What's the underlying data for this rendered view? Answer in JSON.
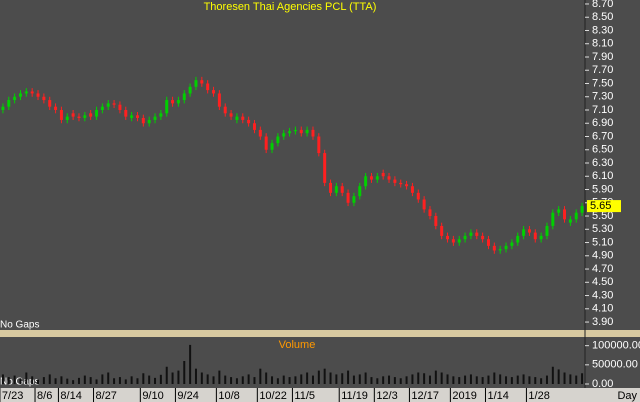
{
  "chart_data": {
    "type": "candlestick",
    "title": "Thoresen Thai Agencies PCL (TTA)",
    "up_color": "#00d000",
    "down_color": "#ff2020",
    "volume_color": "#111111",
    "open": [
      7.1,
      7.15,
      7.25,
      7.3,
      7.35,
      7.38,
      7.35,
      7.3,
      7.25,
      7.15,
      7.1,
      6.95,
      7.05,
      7.0,
      6.98,
      7.05,
      7.0,
      7.1,
      7.15,
      7.2,
      7.18,
      7.1,
      6.98,
      7.02,
      6.98,
      6.9,
      6.95,
      7.0,
      7.05,
      7.25,
      7.2,
      7.25,
      7.35,
      7.45,
      7.55,
      7.5,
      7.4,
      7.35,
      7.15,
      7.05,
      6.95,
      7.0,
      6.95,
      6.9,
      6.8,
      6.7,
      6.5,
      6.6,
      6.7,
      6.75,
      6.78,
      6.8,
      6.75,
      6.8,
      6.7,
      6.45,
      6.0,
      5.85,
      5.95,
      5.85,
      5.7,
      5.8,
      5.95,
      6.1,
      6.05,
      6.15,
      6.1,
      6.05,
      6.0,
      5.98,
      5.95,
      5.85,
      5.75,
      5.6,
      5.5,
      5.35,
      5.2,
      5.15,
      5.1,
      5.15,
      5.2,
      5.25,
      5.2,
      5.15,
      5.05,
      4.98,
      5.0,
      5.05,
      5.1,
      5.2,
      5.3,
      5.25,
      5.15,
      5.2,
      5.35,
      5.55,
      5.6,
      5.4,
      5.45,
      5.55
    ],
    "high": [
      7.2,
      7.3,
      7.35,
      7.4,
      7.43,
      7.43,
      7.4,
      7.35,
      7.3,
      7.2,
      7.15,
      7.05,
      7.1,
      7.05,
      7.07,
      7.1,
      7.15,
      7.2,
      7.25,
      7.25,
      7.23,
      7.15,
      7.07,
      7.07,
      7.03,
      7.0,
      7.05,
      7.1,
      7.3,
      7.3,
      7.3,
      7.4,
      7.5,
      7.6,
      7.6,
      7.55,
      7.45,
      7.4,
      7.2,
      7.1,
      7.05,
      7.05,
      7.0,
      6.95,
      6.85,
      6.75,
      6.65,
      6.75,
      6.8,
      6.83,
      6.85,
      6.85,
      6.85,
      6.85,
      6.75,
      6.5,
      6.05,
      6.0,
      6.0,
      5.9,
      5.85,
      6.0,
      6.15,
      6.15,
      6.15,
      6.2,
      6.15,
      6.1,
      6.05,
      6.03,
      6.0,
      5.9,
      5.8,
      5.65,
      5.55,
      5.4,
      5.25,
      5.2,
      5.2,
      5.25,
      5.3,
      5.3,
      5.25,
      5.2,
      5.1,
      5.05,
      5.1,
      5.15,
      5.25,
      5.35,
      5.35,
      5.3,
      5.25,
      5.4,
      5.6,
      5.65,
      5.65,
      5.5,
      5.6,
      5.7
    ],
    "low": [
      7.05,
      7.1,
      7.2,
      7.25,
      7.3,
      7.3,
      7.25,
      7.2,
      7.1,
      7.05,
      6.9,
      6.9,
      6.95,
      6.93,
      6.93,
      6.95,
      6.95,
      7.05,
      7.1,
      7.13,
      7.05,
      6.95,
      6.93,
      6.93,
      6.85,
      6.85,
      6.9,
      6.95,
      7.0,
      7.15,
      7.15,
      7.2,
      7.3,
      7.4,
      7.45,
      7.35,
      7.3,
      7.1,
      7.0,
      6.95,
      6.9,
      6.9,
      6.85,
      6.75,
      6.65,
      6.45,
      6.45,
      6.55,
      6.65,
      6.7,
      6.73,
      6.7,
      6.7,
      6.65,
      6.4,
      5.95,
      5.8,
      5.8,
      5.8,
      5.65,
      5.65,
      5.75,
      5.9,
      6.0,
      6.0,
      6.05,
      6.0,
      5.95,
      5.93,
      5.9,
      5.8,
      5.7,
      5.55,
      5.45,
      5.3,
      5.15,
      5.1,
      5.05,
      5.05,
      5.1,
      5.15,
      5.15,
      5.1,
      5.0,
      4.93,
      4.93,
      4.95,
      5.0,
      5.05,
      5.15,
      5.2,
      5.1,
      5.1,
      5.15,
      5.3,
      5.5,
      5.4,
      5.35,
      5.4,
      5.5
    ],
    "close": [
      7.15,
      7.25,
      7.3,
      7.35,
      7.38,
      7.35,
      7.3,
      7.25,
      7.15,
      7.1,
      6.95,
      7.0,
      7.0,
      6.98,
      7.02,
      7.0,
      7.1,
      7.15,
      7.2,
      7.18,
      7.1,
      7.0,
      7.02,
      6.98,
      6.9,
      6.95,
      7.0,
      7.05,
      7.25,
      7.2,
      7.25,
      7.35,
      7.45,
      7.55,
      7.5,
      7.4,
      7.35,
      7.15,
      7.05,
      7.0,
      7.0,
      6.95,
      6.9,
      6.8,
      6.7,
      6.5,
      6.6,
      6.7,
      6.75,
      6.78,
      6.8,
      6.75,
      6.8,
      6.7,
      6.45,
      6.0,
      5.85,
      5.95,
      5.85,
      5.7,
      5.8,
      5.95,
      6.1,
      6.05,
      6.1,
      6.1,
      6.05,
      6.0,
      5.98,
      5.95,
      5.85,
      5.75,
      5.6,
      5.5,
      5.35,
      5.2,
      5.15,
      5.1,
      5.15,
      5.2,
      5.25,
      5.2,
      5.15,
      5.05,
      4.98,
      5.0,
      5.05,
      5.1,
      5.2,
      5.3,
      5.25,
      5.15,
      5.2,
      5.35,
      5.55,
      5.6,
      5.45,
      5.45,
      5.55,
      5.65
    ],
    "xlim": [
      0,
      100
    ],
    "xticks": [
      {
        "value": 0,
        "label": "7/23"
      },
      {
        "value": 6,
        "label": "8/6"
      },
      {
        "value": 10,
        "label": "8/14"
      },
      {
        "value": 16,
        "label": "8/27"
      },
      {
        "value": 24,
        "label": "9/10"
      },
      {
        "value": 30,
        "label": "9/24"
      },
      {
        "value": 37,
        "label": "10/8"
      },
      {
        "value": 44,
        "label": "10/22"
      },
      {
        "value": 50,
        "label": "11/5"
      },
      {
        "value": 58,
        "label": "11/19"
      },
      {
        "value": 64,
        "label": "12/3"
      },
      {
        "value": 70,
        "label": "12/17"
      },
      {
        "value": 77,
        "label": "2019"
      },
      {
        "value": 83,
        "label": "1/14"
      },
      {
        "value": 90,
        "label": "1/28"
      }
    ],
    "x_unit": "Day",
    "ylim": [
      3.78,
      8.76
    ],
    "yticks": [
      {
        "value": 3.9,
        "label": "3.90"
      },
      {
        "value": 4.1,
        "label": "4.10"
      },
      {
        "value": 4.3,
        "label": "4.30"
      },
      {
        "value": 4.5,
        "label": "4.50"
      },
      {
        "value": 4.7,
        "label": "4.70"
      },
      {
        "value": 4.9,
        "label": "4.90"
      },
      {
        "value": 5.1,
        "label": "5.10"
      },
      {
        "value": 5.3,
        "label": "5.30"
      },
      {
        "value": 5.5,
        "label": "5.50"
      },
      {
        "value": 5.7,
        "label": "5.70"
      },
      {
        "value": 5.9,
        "label": "5.90"
      },
      {
        "value": 6.1,
        "label": "6.10"
      },
      {
        "value": 6.3,
        "label": "6.30"
      },
      {
        "value": 6.5,
        "label": "6.50"
      },
      {
        "value": 6.7,
        "label": "6.70"
      },
      {
        "value": 6.9,
        "label": "6.90"
      },
      {
        "value": 7.1,
        "label": "7.10"
      },
      {
        "value": 7.3,
        "label": "7.30"
      },
      {
        "value": 7.5,
        "label": "7.50"
      },
      {
        "value": 7.7,
        "label": "7.70"
      },
      {
        "value": 7.9,
        "label": "7.90"
      },
      {
        "value": 8.1,
        "label": "8.10"
      },
      {
        "value": 8.3,
        "label": "8.30"
      },
      {
        "value": 8.5,
        "label": "8.50"
      },
      {
        "value": 8.7,
        "label": "8.70"
      }
    ],
    "price_note": "No Gaps",
    "volume": {
      "title": "Volume",
      "note": "No Gaps",
      "values": [
        25000,
        18000,
        22000,
        15000,
        30000,
        20000,
        12000,
        18000,
        25000,
        15000,
        20000,
        14000,
        10000,
        16000,
        22000,
        18000,
        12000,
        25000,
        30000,
        15000,
        18000,
        12000,
        20000,
        15000,
        28000,
        22000,
        16000,
        24000,
        45000,
        30000,
        35000,
        60000,
        102000,
        40000,
        30000,
        25000,
        20000,
        35000,
        22000,
        18000,
        15000,
        20000,
        25000,
        18000,
        40000,
        30000,
        20000,
        15000,
        22000,
        18000,
        20000,
        25000,
        30000,
        22000,
        35000,
        40000,
        30000,
        25000,
        28000,
        35000,
        22000,
        25000,
        30000,
        18000,
        15000,
        20000,
        22000,
        18000,
        15000,
        20000,
        25000,
        30000,
        28000,
        22000,
        35000,
        30000,
        25000,
        20000,
        18000,
        22000,
        25000,
        20000,
        18000,
        22000,
        30000,
        25000,
        20000,
        18000,
        22000,
        25000,
        20000,
        18000,
        15000,
        22000,
        45000,
        38000,
        30000,
        25000,
        22000,
        28000
      ],
      "ylim": [
        0,
        120000
      ],
      "yticks": [
        {
          "value": 0,
          "label": "0.00"
        },
        {
          "value": 50000,
          "label": "50000.00"
        },
        {
          "value": 100000,
          "label": "100000.00"
        }
      ]
    }
  }
}
